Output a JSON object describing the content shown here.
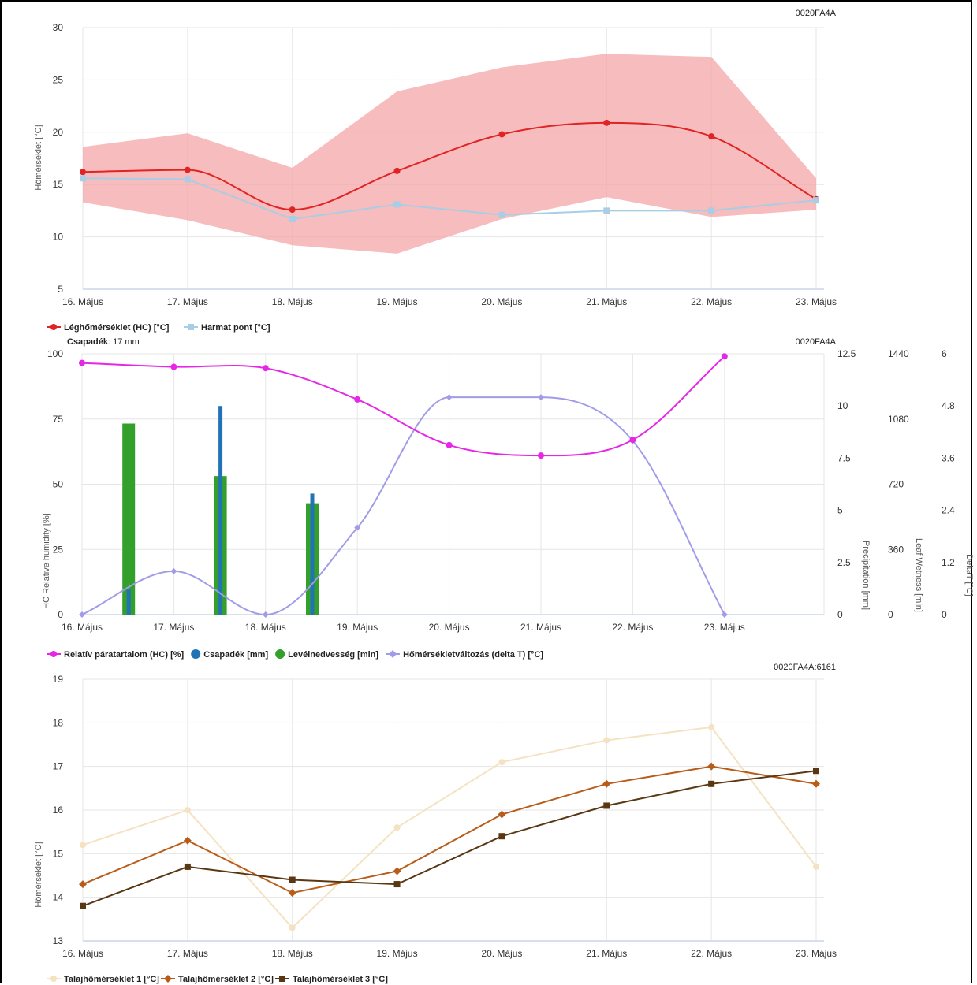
{
  "chart_data": [
    {
      "type": "line",
      "id_label": "0020FA4A",
      "categories": [
        "16. Május",
        "17. Május",
        "18. Május",
        "19. Május",
        "20. Május",
        "21. Május",
        "22. Május",
        "23. Május"
      ],
      "ylabel": "Hőmérséklet [°C]",
      "ylim": [
        5,
        30
      ],
      "yticks": [
        5,
        10,
        15,
        20,
        25,
        30
      ],
      "grid": true,
      "range_band": {
        "min": [
          13.3,
          11.6,
          9.2,
          8.4,
          11.7,
          13.8,
          11.9,
          12.6
        ],
        "max": [
          18.6,
          19.9,
          16.6,
          23.9,
          26.2,
          27.5,
          27.2,
          15.6
        ],
        "color": "#f4a5a7"
      },
      "series": [
        {
          "name": "Léghőmérséklet (HC) [°C]",
          "values": [
            16.2,
            16.4,
            12.6,
            16.3,
            19.8,
            20.9,
            19.6,
            13.6
          ],
          "color": "#e02424",
          "marker": "circle",
          "smooth": true
        },
        {
          "name": "Harmat pont [°C]",
          "values": [
            15.6,
            15.5,
            11.7,
            13.1,
            12.1,
            12.5,
            12.5,
            13.5
          ],
          "color": "#a9cde4",
          "marker": "square",
          "smooth": false
        }
      ],
      "legend": "bottom-left"
    },
    {
      "type": "bar",
      "header_label": "Csapadék",
      "header_value": ": 17 mm",
      "id_label": "0020FA4A",
      "categories": [
        "16. Május",
        "17. Május",
        "18. Május",
        "19. Május",
        "20. Május",
        "21. Május",
        "22. Május",
        "23. Május"
      ],
      "axes": {
        "humidity": {
          "label": "HC Relative humidity [%]",
          "ylim": [
            0,
            100
          ],
          "ticks": [
            "0",
            "25",
            "50",
            "75",
            "100"
          ]
        },
        "precipitation": {
          "label": "Precipitation [mm]",
          "ylim": [
            0,
            12.5
          ],
          "ticks": [
            "0",
            "2.5",
            "5",
            "7.5",
            "10",
            "12.5"
          ]
        },
        "leaf_wetness": {
          "label": "Leaf Wetness [min]",
          "ylim": [
            0,
            1440
          ],
          "ticks": [
            "0",
            "360",
            "720",
            "1080",
            "1440"
          ]
        },
        "delta_t": {
          "label": "DeltaT [°C]",
          "ylim": [
            0,
            6
          ],
          "ticks": [
            "0",
            "1.2",
            "2.4",
            "3.6",
            "4.8",
            "6"
          ]
        }
      },
      "series": [
        {
          "name": "Relatív páratartalom (HC) [%]",
          "axis": "humidity",
          "kind": "line",
          "values": [
            96.5,
            95,
            94.5,
            82.5,
            65,
            61,
            67,
            99
          ],
          "color": "#e627e6"
        },
        {
          "name": "Csapadék [mm]",
          "axis": "precipitation",
          "kind": "bar",
          "values": [
            1.2,
            10,
            5.8,
            0,
            0,
            0,
            0,
            0
          ],
          "color": "#2273b5"
        },
        {
          "name": "Levélnedvesség [min]",
          "axis": "leaf_wetness",
          "kind": "bar",
          "values": [
            1055,
            765,
            615,
            0,
            0,
            0,
            0,
            0
          ],
          "color": "#33a02c"
        },
        {
          "name": "Hőmérsékletváltozás (delta T) [°C]",
          "axis": "delta_t",
          "kind": "line",
          "values": [
            0,
            1,
            0,
            2,
            5,
            5,
            4,
            0
          ],
          "color": "#a09ce8"
        }
      ],
      "legend": "bottom-left"
    },
    {
      "type": "line",
      "id_label": "0020FA4A:6161",
      "categories": [
        "16. Május",
        "17. Május",
        "18. Május",
        "19. Május",
        "20. Május",
        "21. Május",
        "22. Május",
        "23. Május"
      ],
      "ylabel": "Hőmérséklet [°C]",
      "ylim": [
        13,
        19
      ],
      "yticks": [
        13,
        14,
        15,
        16,
        17,
        18,
        19
      ],
      "grid": true,
      "series": [
        {
          "name": "Talajhőmérséklet 1 [°C]",
          "values": [
            15.2,
            16.0,
            13.3,
            15.6,
            17.1,
            17.6,
            17.9,
            14.7
          ],
          "color": "#f5e2c2",
          "marker": "circle"
        },
        {
          "name": "Talajhőmérséklet 2 [°C]",
          "values": [
            14.3,
            15.3,
            14.1,
            14.6,
            15.9,
            16.6,
            17.0,
            16.6
          ],
          "color": "#b85c19",
          "marker": "diamond"
        },
        {
          "name": "Talajhőmérséklet 3 [°C]",
          "values": [
            13.8,
            14.7,
            14.4,
            14.3,
            15.4,
            16.1,
            16.6,
            16.9
          ],
          "color": "#5a3713",
          "marker": "square"
        }
      ],
      "legend": "bottom-left"
    }
  ]
}
